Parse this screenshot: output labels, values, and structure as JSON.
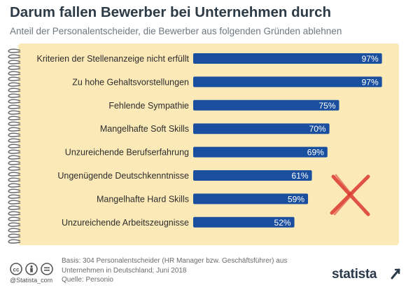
{
  "header": {
    "title": "Darum fallen Bewerber bei Unternehmen durch",
    "subtitle": "Anteil der Personalentscheider, die Bewerber aus folgenden Gründen ablehnen"
  },
  "chart_data": {
    "type": "bar",
    "orientation": "horizontal",
    "title": "Darum fallen Bewerber bei Unternehmen durch",
    "subtitle": "Anteil der Personalentscheider, die Bewerber aus folgenden Gründen ablehnen",
    "categories": [
      "Kriterien der Stellenanzeige nicht erfüllt",
      "Zu hohe Gehaltsvorstellungen",
      "Fehlende Sympathie",
      "Mangelhafte Soft Skills",
      "Unzureichende Berufserfahrung",
      "Ungenügende Deutschkenntnisse",
      "Mangelhafte Hard Skills",
      "Unzureichende Arbeitszeugnisse"
    ],
    "values": [
      97,
      97,
      75,
      70,
      69,
      61,
      59,
      52
    ],
    "value_labels": [
      "97%",
      "97%",
      "75%",
      "70%",
      "69%",
      "61%",
      "59%",
      "52%"
    ],
    "unit": "%",
    "xlim": [
      0,
      100
    ],
    "grid": false,
    "legend": "none",
    "bar_color": "#1a4fa0",
    "background_color": "#fbe9b8",
    "cross_color": "#d9362b"
  },
  "footer": {
    "source_lines": [
      "Basis: 304 Personalentscheider (HR Manager bzw. Geschäftsführer) aus",
      "Unternehmen in Deutschland; Juni 2018",
      "Quelle: Personio"
    ],
    "handle": "@Statista_com",
    "logo": "statista"
  }
}
